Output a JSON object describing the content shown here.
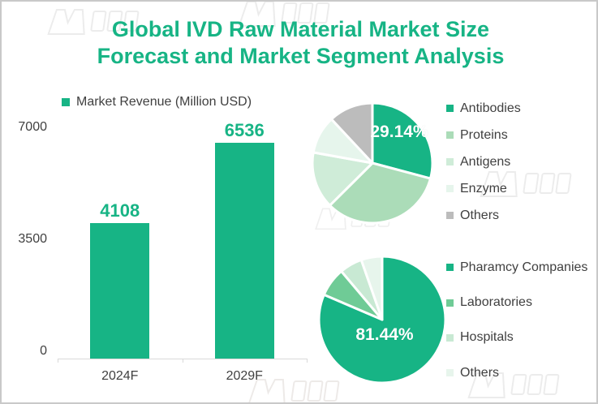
{
  "title": {
    "line1": "Global IVD Raw Material Market Size",
    "line2": "Forecast and Market Segment Analysis"
  },
  "colors": {
    "brand_green": "#17b485",
    "text_dark": "#404040",
    "axis_gray": "#d9d9d9",
    "frame_border": "#c9c9c9"
  },
  "chart_data": [
    {
      "type": "bar",
      "legend": "Market Revenue (Million USD)",
      "categories": [
        "2024F",
        "2029F"
      ],
      "values": [
        4108,
        6536
      ],
      "data_labels": [
        "4108",
        "6536"
      ],
      "ylabel": "",
      "xlabel": "",
      "ylim": [
        0,
        7000
      ],
      "yticks": [
        "0",
        "3500",
        "7000"
      ],
      "bar_color": "#17b485",
      "grid": false,
      "legend_position": "top-left"
    },
    {
      "type": "pie",
      "legend_position": "right",
      "slices": [
        {
          "label": "Antibodies",
          "value": 29.14,
          "color": "#17b485"
        },
        {
          "label": "Proteins",
          "value": 33.4,
          "color": "#abdcb8"
        },
        {
          "label": "Antigens",
          "value": 15.3,
          "color": "#cfecd8"
        },
        {
          "label": "Enzyme",
          "value": 10.2,
          "color": "#e6f5ec"
        },
        {
          "label": "Others",
          "value": 11.96,
          "color": "#bcbcbc"
        }
      ],
      "data_label": "29.14%",
      "data_label_slice": "Antibodies"
    },
    {
      "type": "pie",
      "legend_position": "right",
      "slices": [
        {
          "label": "Pharamcy Companies",
          "value": 81.44,
          "color": "#17b485"
        },
        {
          "label": "Laboratories",
          "value": 7.4,
          "color": "#6fcb96"
        },
        {
          "label": "Hospitals",
          "value": 5.8,
          "color": "#c8e9d3"
        },
        {
          "label": "Others",
          "value": 5.36,
          "color": "#e7f5ec"
        }
      ],
      "data_label": "81.44%",
      "data_label_slice": "Pharamcy Companies"
    }
  ]
}
